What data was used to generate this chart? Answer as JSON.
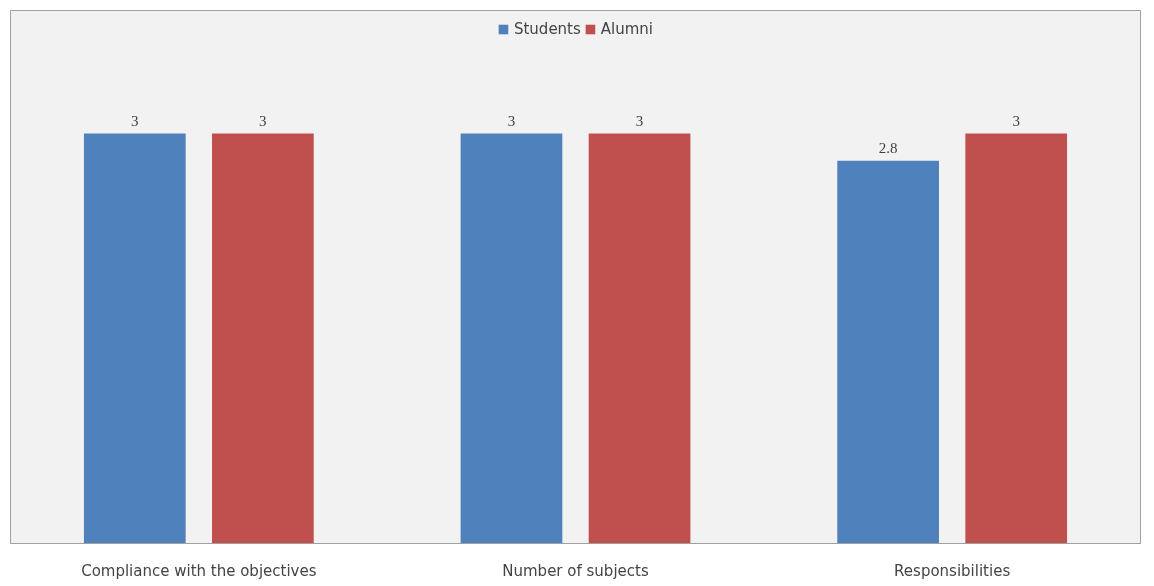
{
  "chart_data": {
    "type": "bar",
    "categories": [
      "Compliance with the objectives",
      "Number of subjects",
      "Responsibilities"
    ],
    "series": [
      {
        "name": "Students",
        "color": "#4f81bd",
        "values": [
          3,
          3,
          2.8
        ]
      },
      {
        "name": "Alumni",
        "color": "#c0504d",
        "values": [
          3,
          3,
          3
        ]
      }
    ],
    "data_labels": true,
    "legend": "top",
    "grid": false
  }
}
